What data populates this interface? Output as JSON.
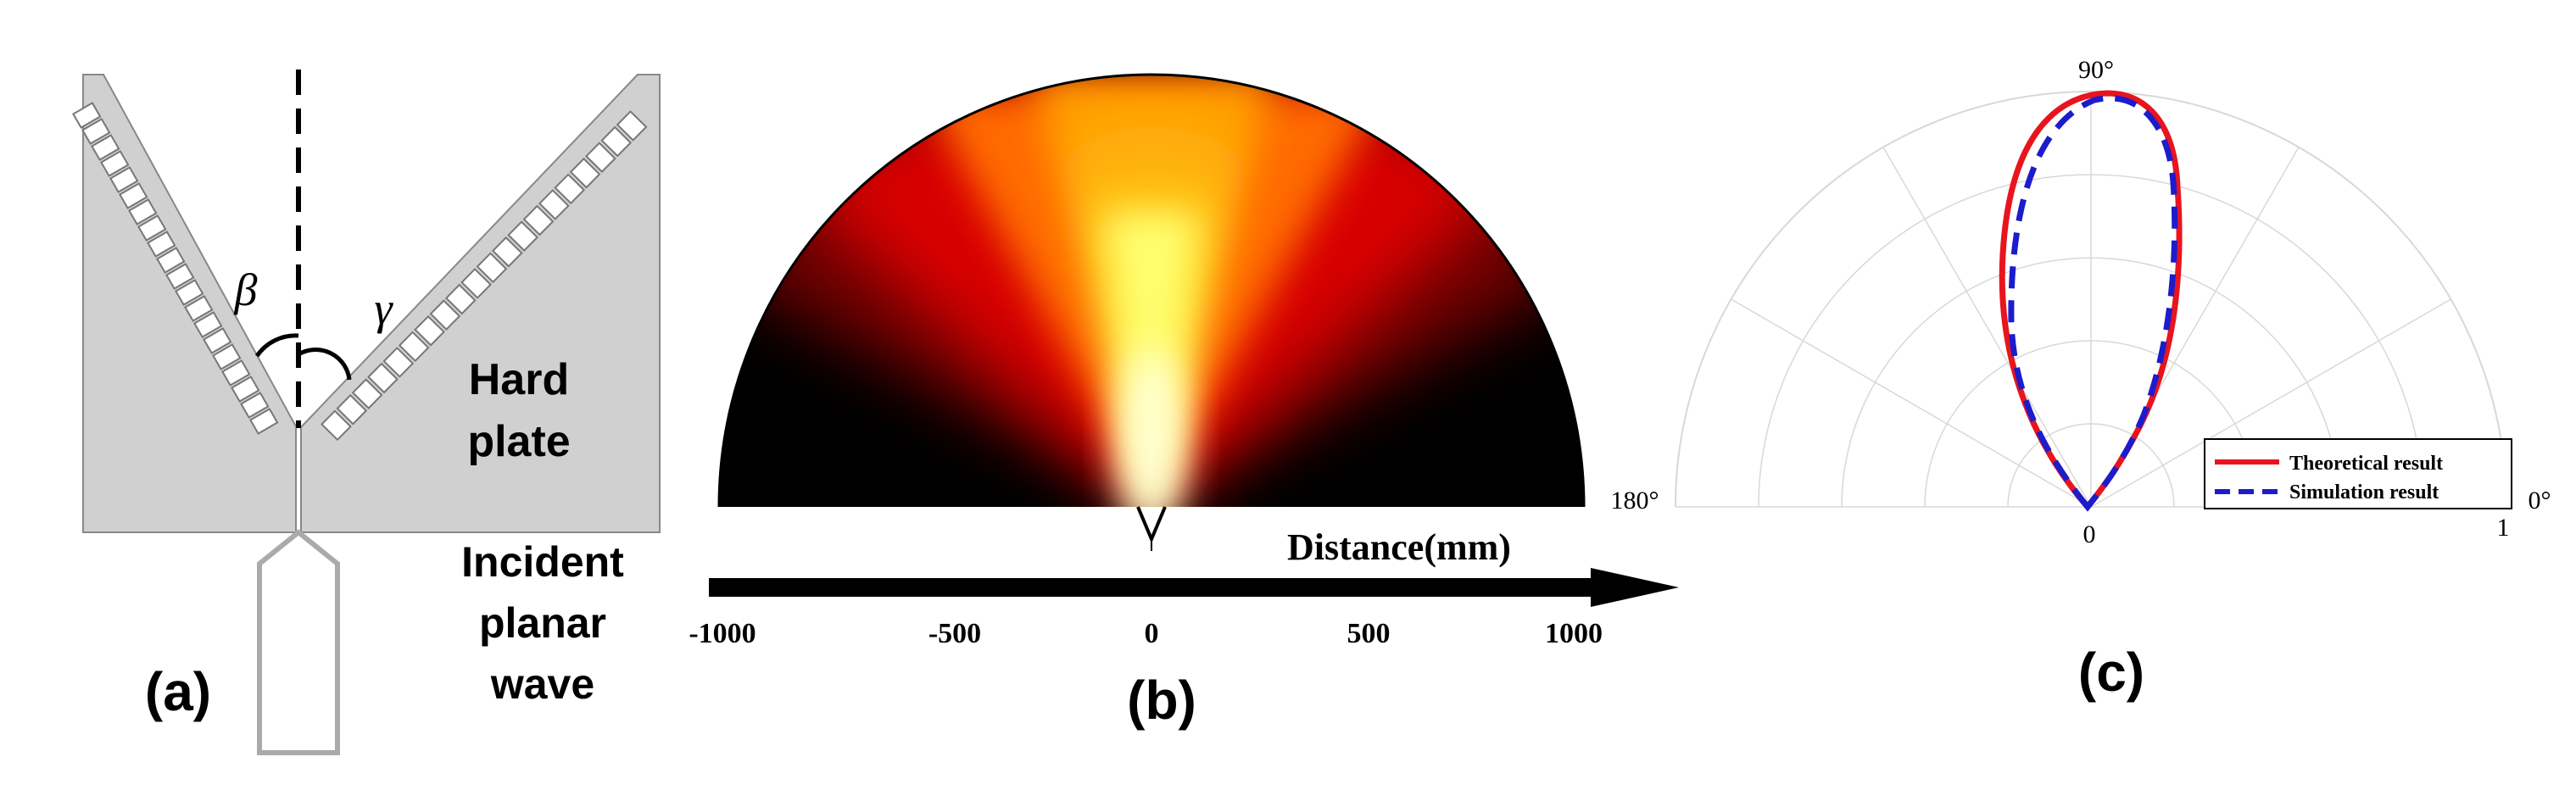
{
  "panel_a": {
    "angle_beta": "β",
    "angle_gamma": "γ",
    "hard_plate_line1": "Hard",
    "hard_plate_line2": "plate",
    "incident_line1": "Incident",
    "incident_line2": "planar",
    "incident_line3": "wave",
    "caption": "(a)"
  },
  "panel_b": {
    "axis_label": "Distance(mm)",
    "ticks": [
      "-1000",
      "-500",
      "0",
      "500",
      "1000"
    ],
    "caption": "(b)"
  },
  "panel_c": {
    "angle_90": "90°",
    "angle_180": "180°",
    "angle_0": "0°",
    "radial_0": "0",
    "radial_1": "1",
    "legend": [
      "Theoretical result",
      "Simulation result"
    ],
    "caption": "(c)",
    "colors": {
      "theoretical": "#e8141e",
      "simulation": "#1c1ccc"
    }
  }
}
